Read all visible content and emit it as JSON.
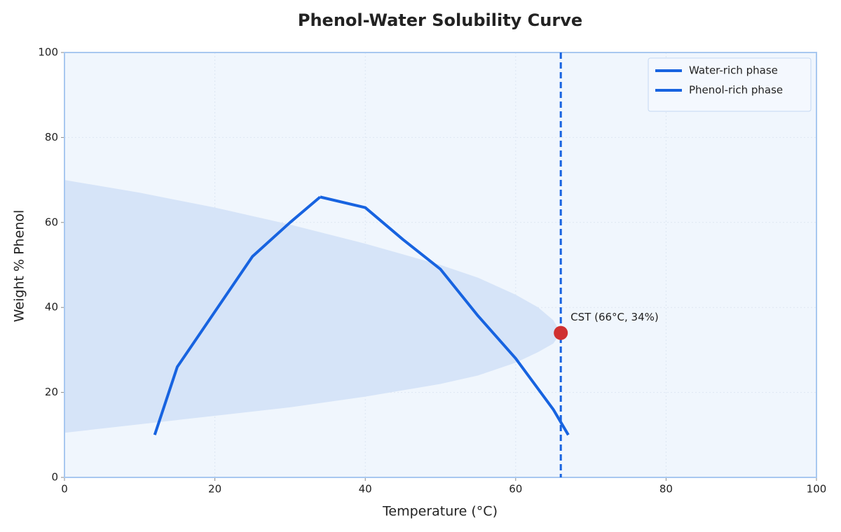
{
  "chart_data": {
    "type": "line",
    "title": "Phenol-Water Solubility Curve",
    "x_label": "Temperature (°C)",
    "y_label": "Weight % Phenol",
    "xlim": [
      0,
      100
    ],
    "xticks": [
      0,
      20,
      40,
      60,
      80,
      100
    ],
    "ylim": [
      0,
      100
    ],
    "yticks": [
      0,
      20,
      40,
      60,
      80,
      100
    ],
    "grid": true,
    "legend": "upper right",
    "series": [
      {
        "name": "Water-rich phase",
        "color": "#1763e0",
        "x": [
          12,
          15,
          20,
          25,
          30,
          34
        ],
        "values": [
          10,
          26,
          39,
          52,
          60,
          66
        ]
      },
      {
        "name": "Phenol-rich phase",
        "color": "#1763e0",
        "x": [
          34,
          40,
          45,
          50,
          55,
          60,
          65,
          67
        ],
        "values": [
          66,
          63.5,
          56,
          49,
          38,
          28,
          16,
          10
        ]
      }
    ],
    "region": {
      "color": "#d6e4f8",
      "x": [
        0,
        10,
        20,
        30,
        40,
        50,
        55,
        60,
        63,
        65,
        66
      ],
      "upper": [
        70,
        67,
        63.5,
        59.5,
        55,
        50,
        47,
        43,
        40,
        37,
        34
      ],
      "lower": [
        10.5,
        12.5,
        14.5,
        16.5,
        19,
        22,
        24,
        27,
        29.5,
        31.5,
        34
      ]
    },
    "vline": {
      "x": 66,
      "color": "#1763e0"
    },
    "point": {
      "x": 66,
      "y": 34,
      "color": "#d03030",
      "label": "CST (66°C, 34%)"
    }
  }
}
